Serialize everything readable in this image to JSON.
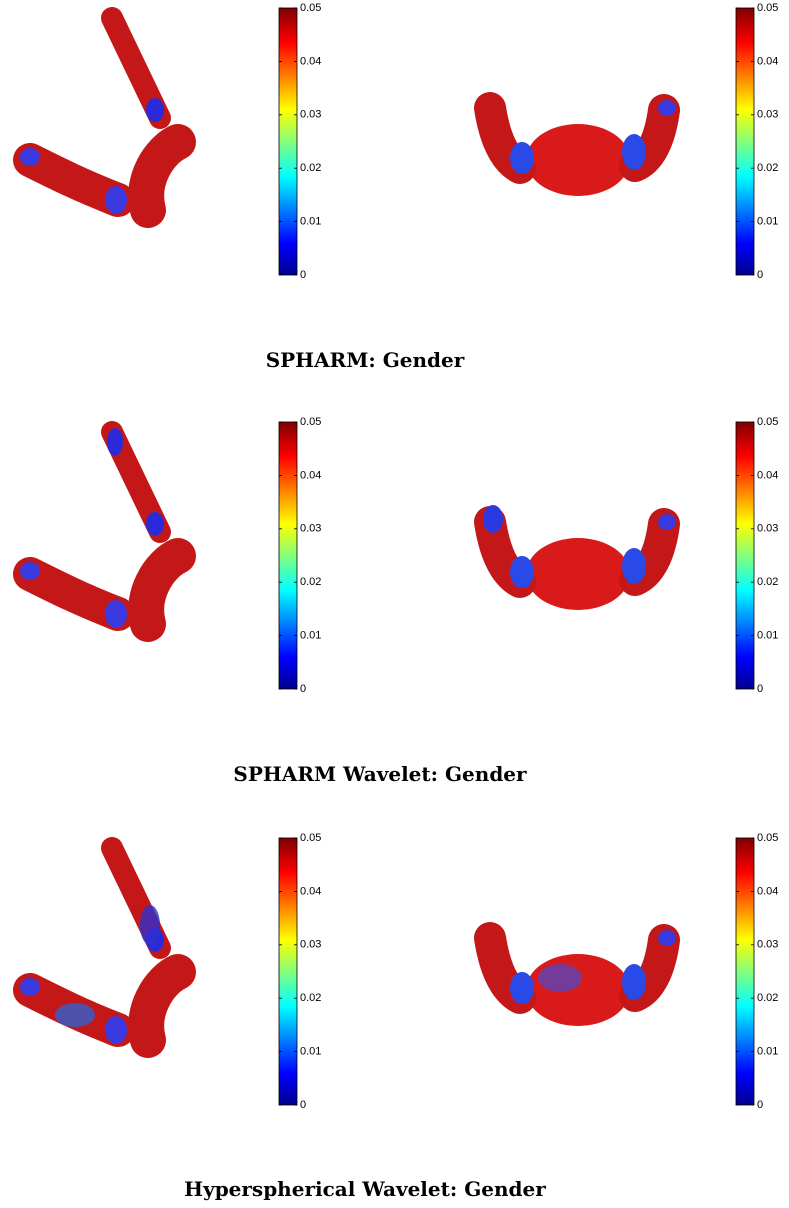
{
  "rows": [
    {
      "caption": "SPHARM: Gender"
    },
    {
      "caption": "SPHARM Wavelet: Gender"
    },
    {
      "caption": "Hyperspherical Wavelet: Gender"
    }
  ],
  "colorbar": {
    "ticks": [
      0,
      0.01,
      0.02,
      0.03,
      0.04,
      0.05
    ]
  }
}
